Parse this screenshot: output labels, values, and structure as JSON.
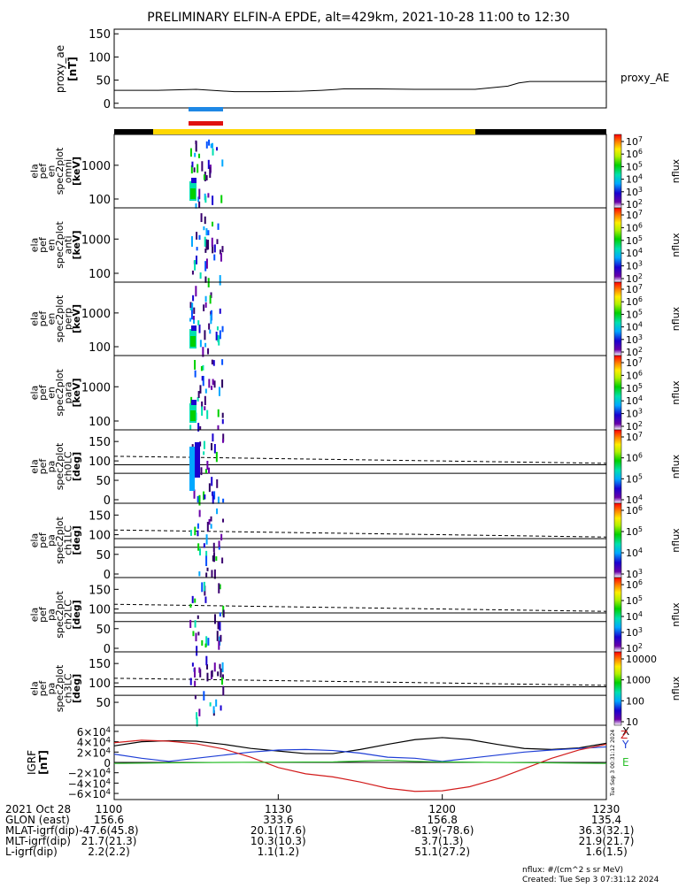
{
  "title": "PRELIMINARY ELFIN-A EPDE, alt=429km, 2021-10-28 11:00 to 12:30",
  "legend_right": "proxy_AE",
  "footer": {
    "units": "nflux: #/(cm^2 s sr MeV)",
    "created": "Created: Tue Sep  3 07:31:12 2024",
    "rotated_stamp": "Tue Sep  3 00:31:12 2024"
  },
  "bottom_table": {
    "rows": [
      {
        "label": "2021 Oct 28",
        "values": [
          "1100",
          "1130",
          "1200",
          "1230"
        ]
      },
      {
        "label": "GLON (east)",
        "values": [
          "156.6",
          "333.6",
          "156.8",
          "135.4"
        ]
      },
      {
        "label": "MLAT-igrf(dip)",
        "values": [
          "-47.6(45.8)",
          "20.1(17.6)",
          "-81.9(-78.6)",
          "36.3(32.1)"
        ]
      },
      {
        "label": "MLT-igrf(dip)",
        "values": [
          "21.7(21.3)",
          "10.3(10.3)",
          "3.7(1.3)",
          "21.9(21.7)"
        ]
      },
      {
        "label": "L-igrf(dip)",
        "values": [
          "2.2(2.2)",
          "1.1(1.2)",
          "51.1(27.2)",
          "1.6(1.5)"
        ]
      }
    ]
  },
  "colors": {
    "sci_zone_blue": "#1e88e5",
    "sci_zone_red": "#e01010",
    "state_bar_yellow": "#ffd700",
    "state_bar_black": "#000000",
    "igrf_x": "#000000",
    "igrf_y": "#1f3fd6",
    "igrf_z": "#d21b1b",
    "igrf_green": "#2bbf2b"
  },
  "chart_data": [
    {
      "type": "line",
      "panel": "proxy_ae",
      "ylabel": [
        "proxy_ae",
        "[nT]"
      ],
      "yticks": [
        "150",
        "100",
        "50",
        "0"
      ],
      "ylim": [
        -10,
        160
      ],
      "xlim": [
        0,
        90
      ],
      "series": [
        {
          "name": "proxy_AE",
          "x": [
            0,
            8,
            15,
            22,
            28,
            34,
            38,
            42,
            48,
            55,
            60,
            66,
            72,
            74,
            76,
            80,
            84,
            90
          ],
          "values": [
            28,
            28,
            30,
            25,
            25,
            26,
            28,
            31,
            31,
            30,
            30,
            30,
            37,
            44,
            47,
            47,
            47,
            47
          ]
        }
      ]
    },
    {
      "type": "heatmap",
      "panel": "omni",
      "ylabel": [
        "ela",
        "pef",
        "en",
        "spec2plot",
        "omni",
        "[keV]"
      ],
      "yticks": [
        "1000",
        "100"
      ],
      "scale": "log",
      "colorbar": {
        "ticks": [
          "10^7",
          "10^6",
          "10^5",
          "10^4",
          "10^3",
          "10^2"
        ],
        "label": "nflux"
      }
    },
    {
      "type": "heatmap",
      "panel": "anti",
      "ylabel": [
        "ela",
        "pef",
        "en",
        "spec2plot",
        "anti",
        "[keV]"
      ],
      "yticks": [
        "1000",
        "100"
      ],
      "scale": "log",
      "colorbar": {
        "ticks": [
          "10^7",
          "10^6",
          "10^5",
          "10^4",
          "10^3",
          "10^2"
        ],
        "label": "nflux"
      }
    },
    {
      "type": "heatmap",
      "panel": "perp",
      "ylabel": [
        "ela",
        "pef",
        "en",
        "spec2plot",
        "perp",
        "[keV]"
      ],
      "yticks": [
        "1000",
        "100"
      ],
      "scale": "log",
      "colorbar": {
        "ticks": [
          "10^7",
          "10^6",
          "10^5",
          "10^4",
          "10^3",
          "10^2"
        ],
        "label": "nflux"
      }
    },
    {
      "type": "heatmap",
      "panel": "para",
      "ylabel": [
        "ela",
        "pef",
        "en",
        "spec2plot",
        "para",
        "[keV]"
      ],
      "yticks": [
        "1000",
        "100"
      ],
      "scale": "log",
      "colorbar": {
        "ticks": [
          "10^7",
          "10^6",
          "10^5",
          "10^4",
          "10^3",
          "10^2"
        ],
        "label": "nflux"
      }
    },
    {
      "type": "heatmap",
      "panel": "ch0LC",
      "ylabel": [
        "ela",
        "pef",
        "pa",
        "spec2plot",
        "ch0LC",
        "[deg]"
      ],
      "yticks": [
        "150",
        "100",
        "50",
        "0"
      ],
      "ylim": [
        0,
        180
      ],
      "colorbar": {
        "ticks": [
          "10^7",
          "10^6",
          "10^5",
          "10^4"
        ],
        "label": "nflux"
      }
    },
    {
      "type": "heatmap",
      "panel": "ch1LC",
      "ylabel": [
        "ela",
        "pef",
        "pa",
        "spec2plot",
        "ch1LC",
        "[deg]"
      ],
      "yticks": [
        "150",
        "100",
        "50",
        "0"
      ],
      "ylim": [
        0,
        180
      ],
      "colorbar": {
        "ticks": [
          "10^6",
          "10^5",
          "10^4",
          "10^3"
        ],
        "label": "nflux"
      }
    },
    {
      "type": "heatmap",
      "panel": "ch2LC",
      "ylabel": [
        "ela",
        "pef",
        "pa",
        "spec2plot",
        "ch2LC",
        "[deg]"
      ],
      "yticks": [
        "150",
        "100",
        "50",
        "0"
      ],
      "ylim": [
        0,
        180
      ],
      "colorbar": {
        "ticks": [
          "10^6",
          "10^5",
          "10^4",
          "10^3",
          "10^2"
        ],
        "label": "nflux"
      }
    },
    {
      "type": "heatmap",
      "panel": "ch3LC",
      "ylabel": [
        "ela",
        "pef",
        "pa",
        "spec2plot",
        "ch3LC",
        "[deg]"
      ],
      "yticks": [
        "150",
        "100",
        "50"
      ],
      "ylim": [
        0,
        180
      ],
      "colorbar": {
        "ticks": [
          "10000",
          "1000",
          "100",
          "10"
        ],
        "label": "nflux"
      }
    },
    {
      "type": "line",
      "panel": "igrf",
      "ylabel": [
        "IGRF",
        "[nT]"
      ],
      "yticks": [
        "6×10^4",
        "4×10^4",
        "2×10^4",
        "0",
        "−2×10^4",
        "−4×10^4",
        "−6×10^4"
      ],
      "ylim": [
        -65000,
        65000
      ],
      "xlim": [
        0,
        90
      ],
      "legend": [
        "X",
        "Y",
        "Z",
        "E"
      ],
      "series": [
        {
          "name": "X",
          "x": [
            0,
            5,
            10,
            15,
            20,
            25,
            30,
            35,
            40,
            45,
            50,
            55,
            60,
            65,
            70,
            75,
            80,
            85,
            90
          ],
          "values": [
            32000,
            40000,
            42000,
            41000,
            35000,
            27000,
            22000,
            17000,
            17000,
            25000,
            35000,
            44000,
            48000,
            44000,
            35000,
            27000,
            25000,
            28000,
            37000
          ]
        },
        {
          "name": "Y",
          "x": [
            0,
            5,
            10,
            15,
            20,
            25,
            30,
            35,
            40,
            45,
            50,
            55,
            60,
            65,
            70,
            75,
            80,
            85,
            90
          ],
          "values": [
            16000,
            8000,
            2000,
            8000,
            14000,
            20000,
            24000,
            25000,
            23000,
            18000,
            10000,
            8000,
            2000,
            8000,
            14000,
            20000,
            24000,
            27000,
            30000
          ]
        },
        {
          "name": "Z",
          "x": [
            0,
            5,
            10,
            15,
            20,
            25,
            30,
            35,
            40,
            45,
            50,
            55,
            60,
            65,
            70,
            75,
            80,
            85,
            90
          ],
          "values": [
            38000,
            43000,
            41000,
            36000,
            26000,
            10000,
            -10000,
            -22000,
            -28000,
            -38000,
            -50000,
            -56000,
            -55000,
            -47000,
            -32000,
            -12000,
            8000,
            24000,
            35000
          ]
        },
        {
          "name": "E",
          "x": [
            0,
            10,
            20,
            30,
            40,
            50,
            55,
            60,
            70,
            80,
            90
          ],
          "values": [
            -2000,
            -1000,
            0,
            500,
            1000,
            4000,
            2000,
            1000,
            0,
            -1000,
            -2000
          ]
        }
      ]
    }
  ]
}
